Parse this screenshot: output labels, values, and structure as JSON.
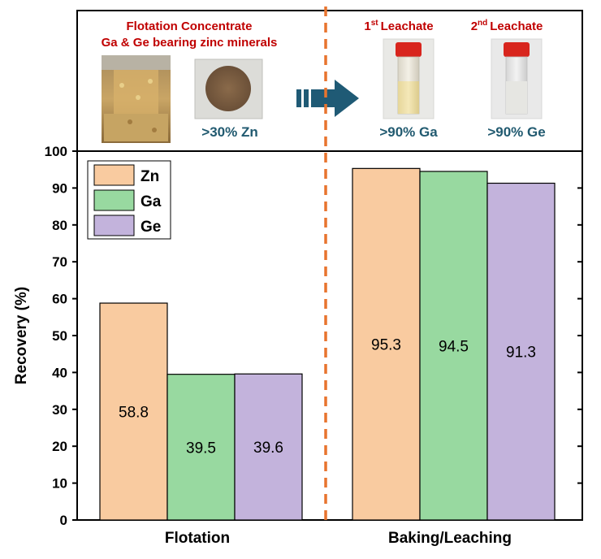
{
  "header": {
    "left_title_line1": "Flotation Concentrate",
    "left_title_line2": "Ga & Ge bearing zinc minerals",
    "left_caption": ">30% Zn",
    "leachate1_label": "Leachate",
    "leachate1_sup": "st",
    "leachate1_num": "1",
    "leachate2_label": "Leachate",
    "leachate2_sup": "nd",
    "leachate2_num": "2",
    "leachate1_caption": ">90% Ga",
    "leachate2_caption": ">90% Ge"
  },
  "colors": {
    "zn": "#f9cba0",
    "ga": "#98d9a0",
    "ge": "#c3b3dc",
    "divider": "#e8742e",
    "arrow": "#1f5a75",
    "cap": "#d8251d"
  },
  "chart_data": {
    "type": "bar",
    "categories": [
      "Flotation",
      "Baking/Leaching"
    ],
    "series": [
      {
        "name": "Zn",
        "values": [
          58.8,
          95.3
        ],
        "color": "#f9cba0"
      },
      {
        "name": "Ga",
        "values": [
          39.5,
          94.5
        ],
        "color": "#98d9a0"
      },
      {
        "name": "Ge",
        "values": [
          39.6,
          91.3
        ],
        "color": "#c3b3dc"
      }
    ],
    "data_labels": [
      [
        "58.8",
        "95.3"
      ],
      [
        "39.5",
        "94.5"
      ],
      [
        "39.6",
        "91.3"
      ]
    ],
    "ylabel": "Recovery  (%)",
    "xlabel": "",
    "ylim": [
      0,
      100
    ],
    "yticks": [
      0,
      10,
      20,
      30,
      40,
      50,
      60,
      70,
      80,
      90,
      100
    ],
    "grid": false,
    "legend_position": "top-left"
  }
}
